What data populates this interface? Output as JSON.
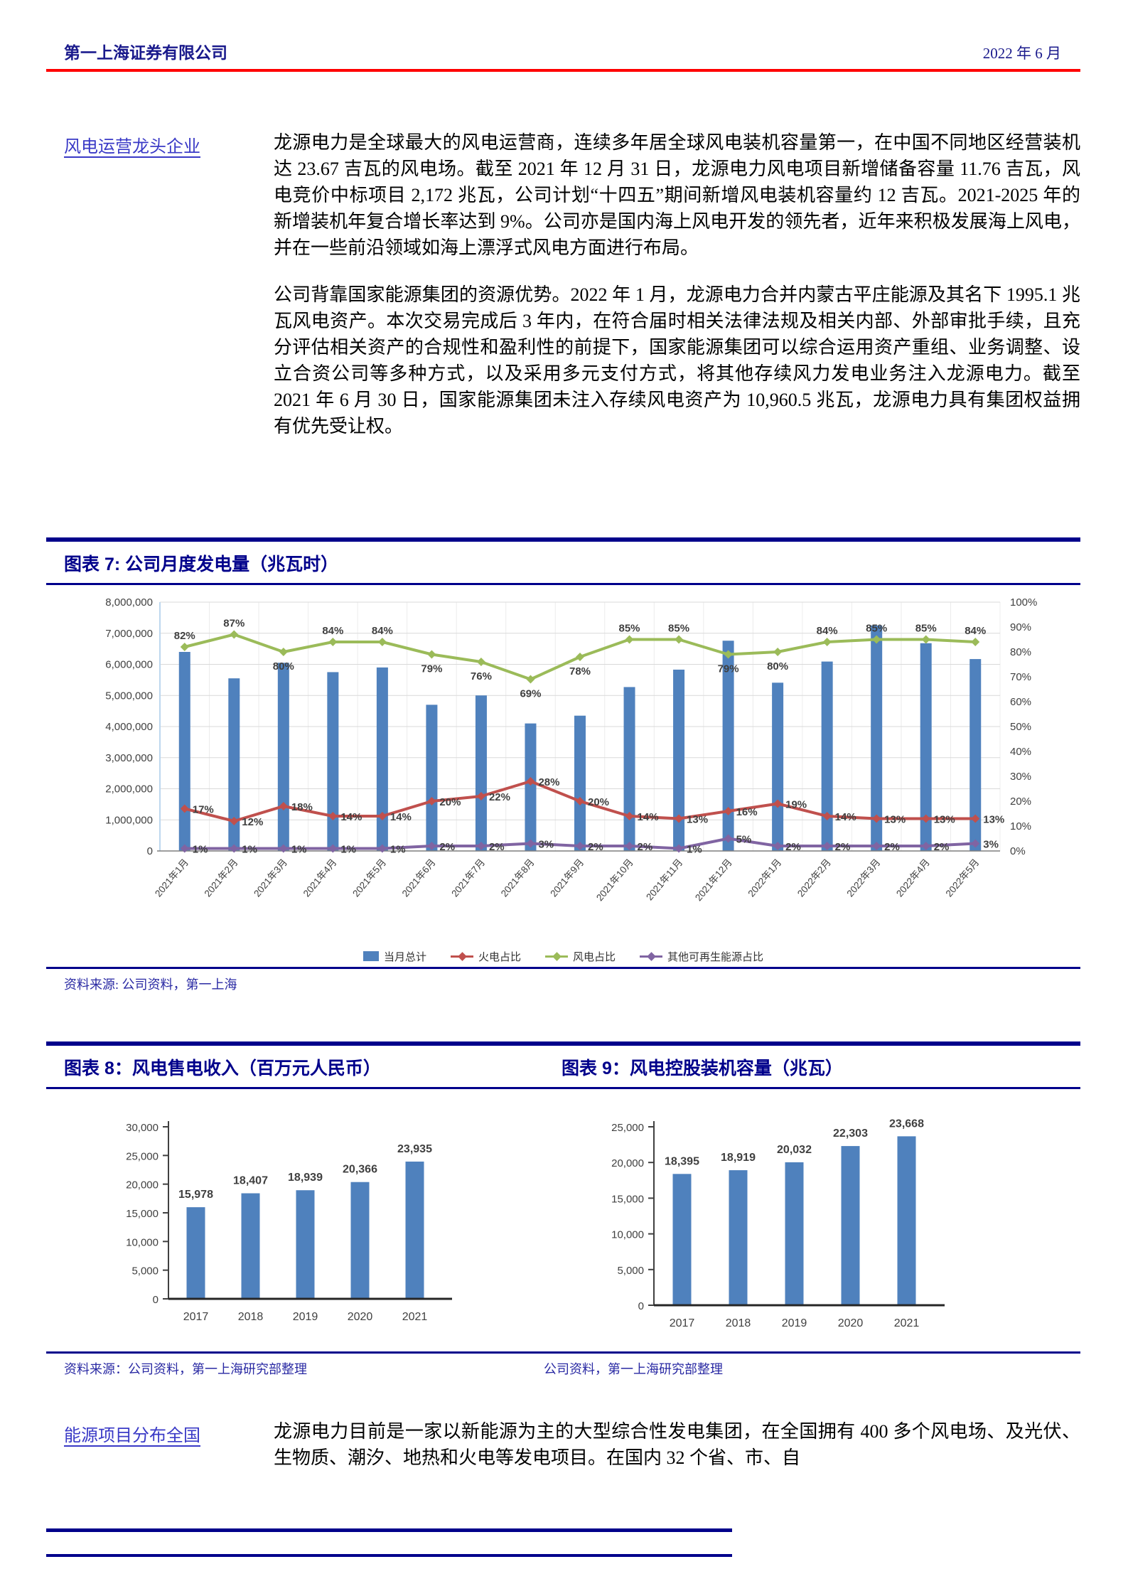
{
  "header": {
    "company": "第一上海证券有限公司",
    "date": "2022 年 6 月"
  },
  "section_wind": {
    "heading": "风电运营龙头企业",
    "paragraph1": "龙源电力是全球最大的风电运营商，连续多年居全球风电装机容量第一，在中国不同地区经营装机达 23.67 吉瓦的风电场。截至 2021 年 12 月 31 日，龙源电力风电项目新增储备容量 11.76 吉瓦，风电竞价中标项目 2,172 兆瓦，公司计划“十四五”期间新增风电装机容量约 12 吉瓦。2021-2025 年的新增装机年复合增长率达到 9%。公司亦是国内海上风电开发的领先者，近年来积极发展海上风电，并在一些前沿领域如海上漂浮式风电方面进行布局。",
    "paragraph2": "公司背靠国家能源集团的资源优势。2022 年 1 月，龙源电力合并内蒙古平庄能源及其名下 1995.1 兆瓦风电资产。本次交易完成后 3 年内，在符合届时相关法律法规及相关内部、外部审批手续，且充分评估相关资产的合规性和盈利性的前提下，国家能源集团可以综合运用资产重组、业务调整、设立合资公司等多种方式，以及采用多元支付方式，将其他存续风力发电业务注入龙源电力。截至 2021 年 6 月 30 日，国家能源集团未注入存续风电资产为 10,960.5 兆瓦，龙源电力具有集团权益拥有优先受让权。"
  },
  "figure7": {
    "title": "图表 7: 公司月度发电量（兆瓦时）",
    "source": "资料来源: 公司资料，第一上海"
  },
  "figure8": {
    "title": "图表 8：风电售电收入（百万元人民币）",
    "source": "资料来源：公司资料，第一上海研究部整理"
  },
  "figure9": {
    "title": "图表 9：风电控股装机容量（兆瓦）",
    "source": "公司资料，第一上海研究部整理"
  },
  "section_energy": {
    "heading": "能源项目分布全国",
    "paragraph": "龙源电力目前是一家以新能源为主的大型综合性发电集团，在全国拥有 400 多个风电场、及光伏、生物质、潮汐、地热和火电等发电项目。在国内 32 个省、市、自"
  },
  "chart_data": [
    {
      "type": "combo-bar-line",
      "title": "公司月度发电量（兆瓦时）",
      "categories": [
        "2021年1月",
        "2021年2月",
        "2021年3月",
        "2021年4月",
        "2021年5月",
        "2021年6月",
        "2021年7月",
        "2021年8月",
        "2021年9月",
        "2021年10月",
        "2021年11月",
        "2021年12月",
        "2022年1月",
        "2022年2月",
        "2022年3月",
        "2022年4月",
        "2022年5月"
      ],
      "series": [
        {
          "name": "当月总计",
          "type": "bar",
          "axis": "left",
          "color": "#4F81BD",
          "values": [
            6400000,
            5550000,
            6050000,
            5750000,
            5900000,
            4700000,
            5000000,
            4100000,
            4350000,
            5270000,
            5830000,
            6760000,
            5410000,
            6090000,
            7250000,
            6680000,
            6170000
          ]
        },
        {
          "name": "火电占比",
          "type": "line",
          "axis": "right",
          "color": "#C0504D",
          "values": [
            17,
            12,
            18,
            14,
            14,
            20,
            22,
            28,
            20,
            14,
            13,
            16,
            19,
            14,
            13,
            13,
            13
          ]
        },
        {
          "name": "风电占比",
          "type": "line",
          "axis": "right",
          "color": "#9BBB59",
          "values": [
            82,
            87,
            80,
            84,
            84,
            79,
            76,
            69,
            78,
            85,
            85,
            79,
            80,
            84,
            85,
            85,
            84
          ]
        },
        {
          "name": "其他可再生能源占比",
          "type": "line",
          "axis": "right",
          "color": "#8064A2",
          "values": [
            1,
            1,
            1,
            1,
            1,
            2,
            2,
            3,
            2,
            2,
            1,
            5,
            2,
            2,
            2,
            2,
            3
          ]
        }
      ],
      "left_axis": {
        "min": 0,
        "max": 8000000,
        "step": 1000000
      },
      "right_axis": {
        "min": 0,
        "max": 100,
        "step": 10,
        "format": "percent"
      },
      "grid": true,
      "legend_position": "bottom"
    },
    {
      "type": "bar",
      "title": "风电售电收入（百万元人民币）",
      "categories": [
        "2017",
        "2018",
        "2019",
        "2020",
        "2021"
      ],
      "values": [
        15978,
        18407,
        18939,
        20366,
        23935
      ],
      "bar_color": "#4F81BD",
      "ylim": [
        0,
        30000
      ],
      "ystep": 5000,
      "grid": false
    },
    {
      "type": "bar",
      "title": "风电控股装机容量（兆瓦）",
      "categories": [
        "2017",
        "2018",
        "2019",
        "2020",
        "2021"
      ],
      "values": [
        18395,
        18919,
        20032,
        22303,
        23668
      ],
      "bar_color": "#4F81BD",
      "ylim": [
        0,
        25000
      ],
      "ystep": 5000,
      "grid": false
    }
  ]
}
